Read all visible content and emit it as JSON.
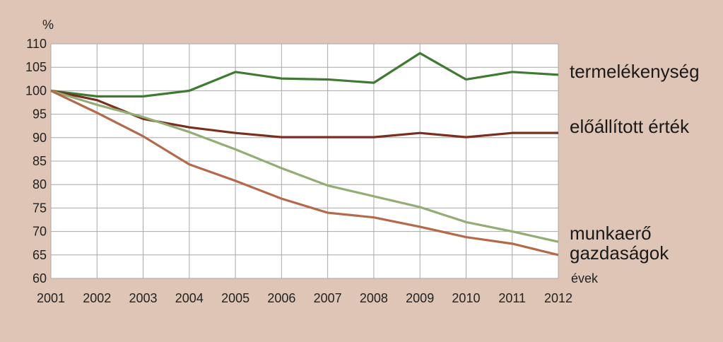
{
  "chart_data": {
    "type": "line",
    "ylabel": "%",
    "xlabel": "évek",
    "x": [
      2001,
      2002,
      2003,
      2004,
      2005,
      2006,
      2007,
      2008,
      2009,
      2010,
      2011,
      2012
    ],
    "y_ticks": [
      60,
      65,
      70,
      75,
      80,
      85,
      90,
      95,
      100,
      105,
      110
    ],
    "xlim": [
      2001,
      2012
    ],
    "ylim": [
      60,
      110
    ],
    "grid": true,
    "series": [
      {
        "name": "termelékenység",
        "color": "#3e7a32",
        "values": [
          100,
          98.8,
          98.8,
          100,
          104,
          102.6,
          102.4,
          101.7,
          108,
          102.4,
          104,
          103.4
        ]
      },
      {
        "name": "előállított érték",
        "color": "#7a2e1e",
        "values": [
          100,
          98,
          94,
          92.2,
          91,
          90.1,
          90.1,
          90.1,
          91,
          90.1,
          91,
          91
        ]
      },
      {
        "name": "munkaerő",
        "color": "#93ad75",
        "values": [
          100,
          97,
          94.4,
          91.2,
          87.5,
          83.5,
          79.8,
          77.5,
          75.2,
          72,
          70,
          67.8
        ]
      },
      {
        "name": "gazdaságok",
        "color": "#b5694b",
        "values": [
          100,
          95.3,
          90.3,
          84.3,
          80.8,
          77,
          74,
          73,
          71,
          68.8,
          67.4,
          65
        ]
      }
    ]
  }
}
